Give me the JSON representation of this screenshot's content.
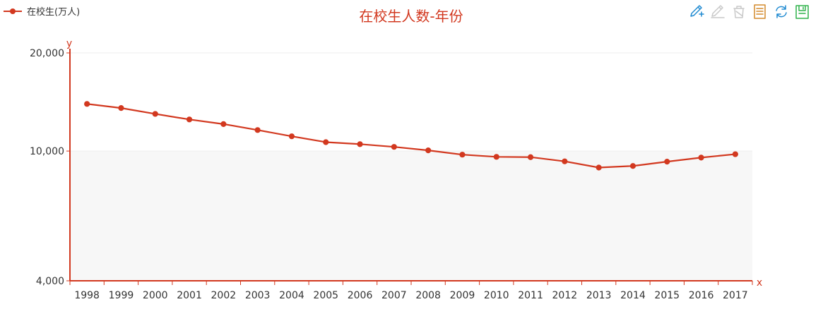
{
  "colors": {
    "accent": "#d2381f",
    "title": "#d2381f",
    "plot_band": "#f7f7f7",
    "grid": "#eeeeee",
    "tool_blue": "#1f8ad1",
    "tool_gray": "#c8c8c8",
    "tool_orange": "#d38a2b",
    "tool_green": "#2fb24a"
  },
  "toolbox": [
    {
      "name": "mark-pen-icon",
      "color": "tool_blue"
    },
    {
      "name": "undo-mark-icon",
      "color": "tool_gray"
    },
    {
      "name": "clear-mark-icon",
      "color": "tool_gray"
    },
    {
      "name": "data-view-icon",
      "color": "tool_orange"
    },
    {
      "name": "restore-icon",
      "color": "tool_blue"
    },
    {
      "name": "save-image-icon",
      "color": "tool_green"
    }
  ],
  "chart_data": {
    "type": "line",
    "title": "在校生人数-年份",
    "xlabel": "x",
    "ylabel": "y",
    "categories": [
      "1998",
      "1999",
      "2000",
      "2001",
      "2002",
      "2003",
      "2004",
      "2005",
      "2006",
      "2007",
      "2008",
      "2009",
      "2010",
      "2011",
      "2012",
      "2013",
      "2014",
      "2015",
      "2016",
      "2017"
    ],
    "series": [
      {
        "name": "在校生(万人)",
        "values": [
          13950,
          13550,
          13000,
          12500,
          12100,
          11600,
          11100,
          10650,
          10500,
          10300,
          10050,
          9750,
          9600,
          9580,
          9300,
          8900,
          9000,
          9280,
          9550,
          9780
        ]
      }
    ],
    "y_scale": "log",
    "ylim": [
      4000,
      20000
    ],
    "yticks": [
      4000,
      10000,
      20000
    ],
    "ytick_labels": [
      "4,000",
      "10,000",
      "20,000"
    ],
    "grid": true,
    "legend_position": "top-left"
  }
}
